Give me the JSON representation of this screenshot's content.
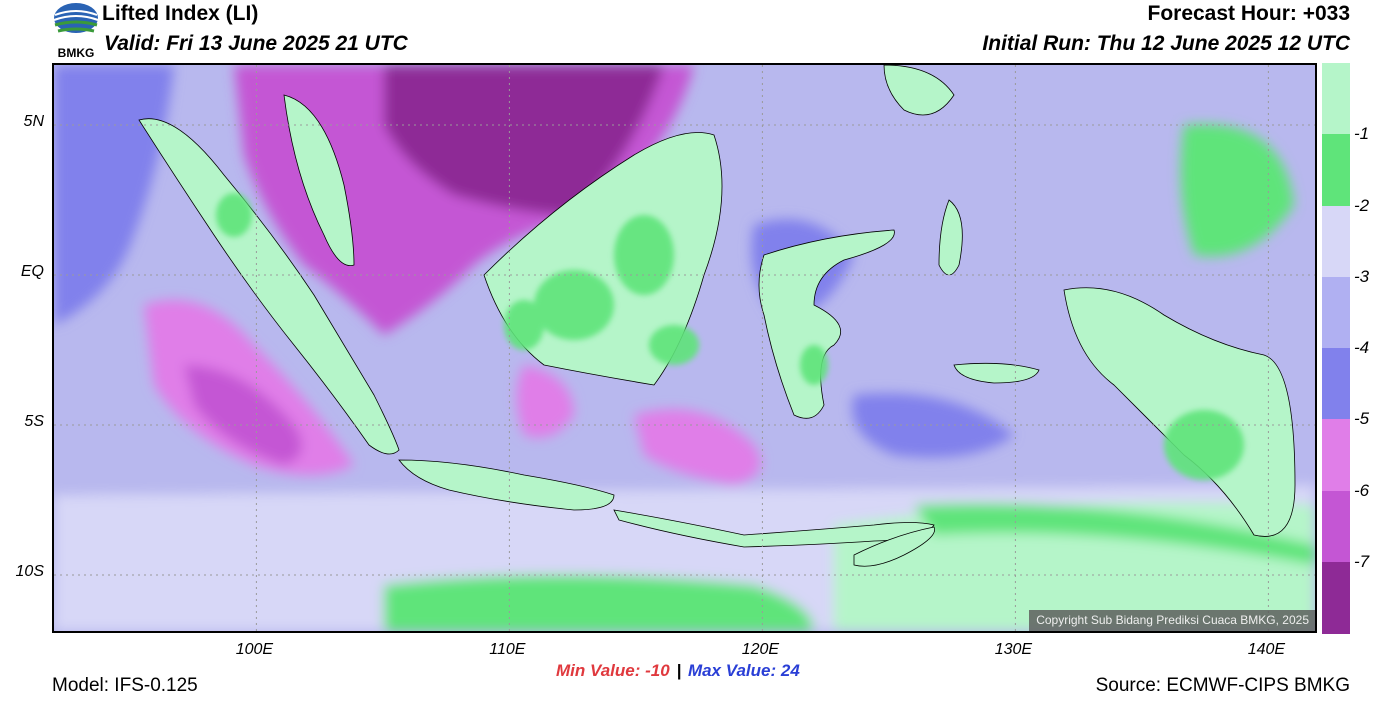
{
  "header": {
    "title": "Lifted Index (LI)",
    "valid": "Valid: Fri 13 June 2025 21 UTC",
    "forecast_hour": "Forecast Hour: +033",
    "initial_run": "Initial Run: Thu 12 June 2025 12 UTC"
  },
  "logo": {
    "text": "BMKG",
    "icon": "bmkg-logo-icon",
    "color": "#2a63b4",
    "accent": "#3a9a3a"
  },
  "map": {
    "lat_labels": [
      "5N",
      "EQ",
      "5S",
      "10S"
    ],
    "lon_labels": [
      "100E",
      "110E",
      "120E",
      "130E",
      "140E"
    ],
    "lat_values": [
      5,
      0,
      -5,
      -10
    ],
    "lon_values": [
      100,
      110,
      120,
      130,
      140
    ],
    "extent": {
      "lon_min": 92,
      "lon_max": 142,
      "lat_min": -12,
      "lat_max": 7
    },
    "ocean_color": "#b8b8ee",
    "land_color": "#b5f5c9",
    "copyright": "Copyright Sub Bidang Prediksi Cuaca BMKG, 2025"
  },
  "colorbar": {
    "labels": [
      "-1",
      "-2",
      "-3",
      "-4",
      "-5",
      "-6",
      "-7"
    ],
    "colors": [
      "#b5f5c9",
      "#5fe47a",
      "#d7d7f7",
      "#b0b0f2",
      "#8181ec",
      "#e07ee8",
      "#c456d4",
      "#8e2a96"
    ]
  },
  "stats": {
    "min_label": "Min Value:",
    "min_value": "-10",
    "separator": "|",
    "max_label": "Max Value:",
    "max_value": "24"
  },
  "footer": {
    "model": "Model: IFS-0.125",
    "source": "Source: ECMWF-CIPS BMKG"
  }
}
